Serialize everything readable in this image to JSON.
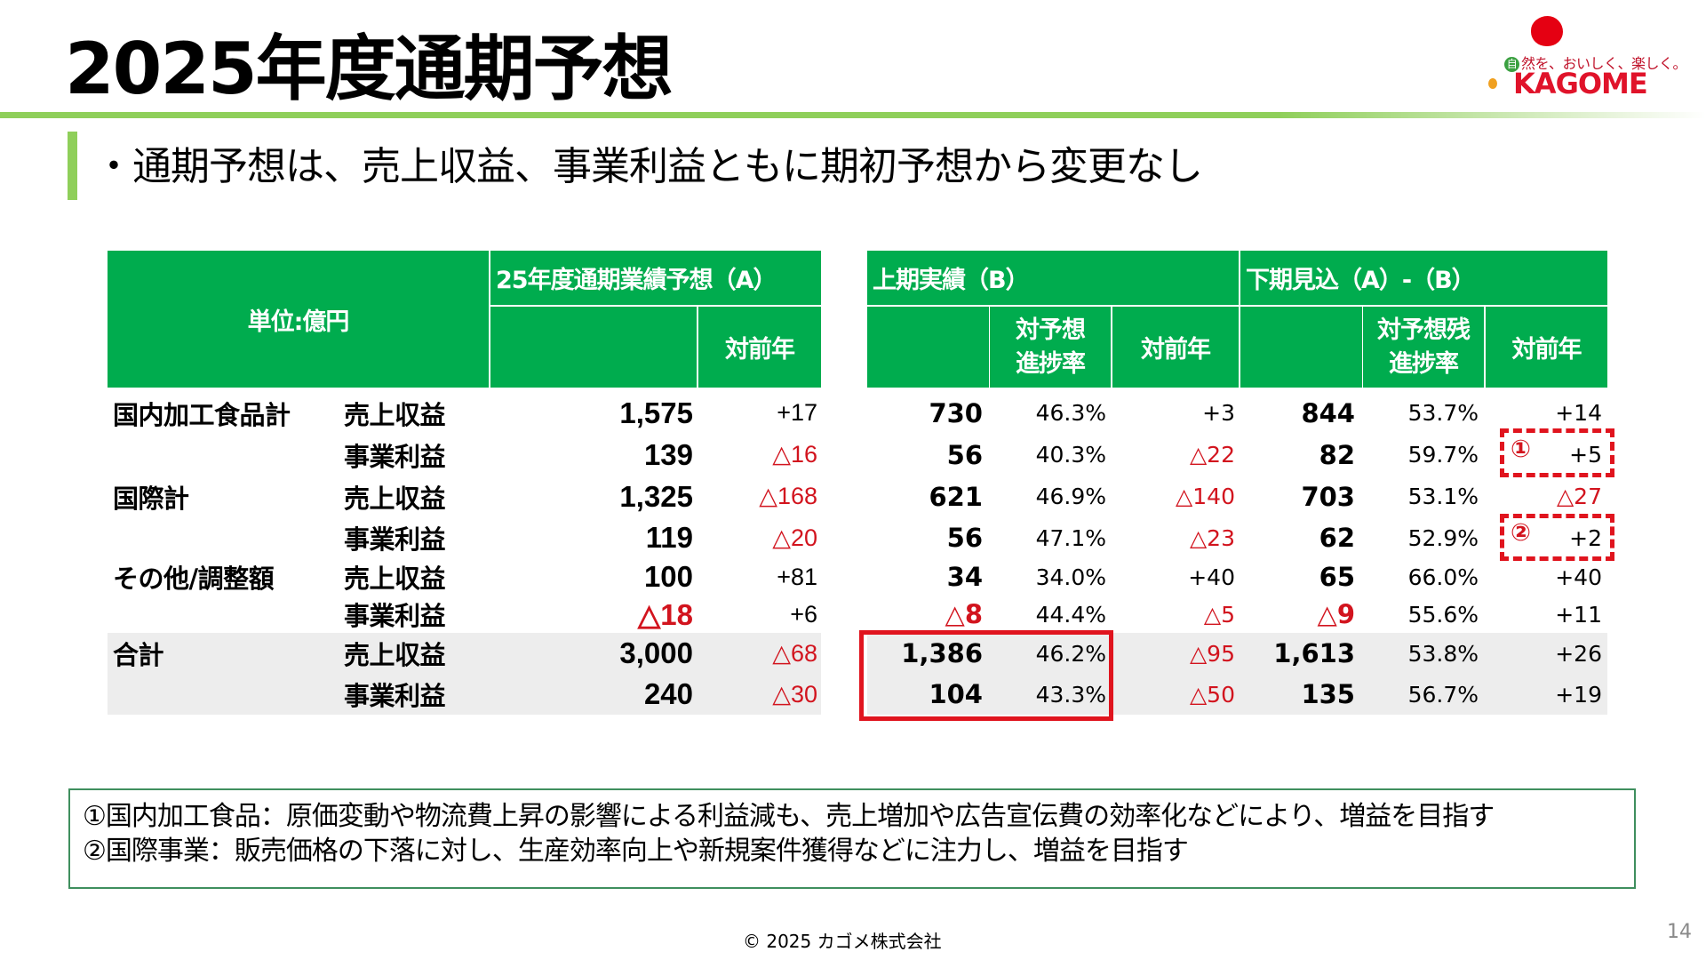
{
  "title": "2025年度通期予想",
  "logo": {
    "tagline_badge": "自",
    "tagline": "然を、おいしく、楽しく。",
    "brand": "KAGOME"
  },
  "subheading": "・通期予想は、売上収益、事業利益ともに期初予想から変更なし",
  "table": {
    "unit_label": "単位:億円",
    "header_a": "25年度通期業績予想（A）",
    "header_a_yoy": "対前年",
    "header_b": "上期実績（B）",
    "header_b_progress_line1": "対予想",
    "header_b_progress_line2": "進捗率",
    "header_b_yoy": "対前年",
    "header_c": "下期見込（A）-（B）",
    "header_c_progress_line1": "対予想残",
    "header_c_progress_line2": "進捗率",
    "header_c_yoy": "対前年",
    "rows": [
      {
        "category": "国内加工食品計",
        "item": "売上収益",
        "a": "1,575",
        "a_yoy": "+17",
        "b": "730",
        "b_pct": "46.3%",
        "b_yoy": "+3",
        "c": "844",
        "c_pct": "53.7%",
        "c_yoy": "+14"
      },
      {
        "category": "",
        "item": "事業利益",
        "a": "139",
        "a_yoy": "△16",
        "b": "56",
        "b_pct": "40.3%",
        "b_yoy": "△22",
        "c": "82",
        "c_pct": "59.7%",
        "c_yoy": "+5"
      },
      {
        "category": "国際計",
        "item": "売上収益",
        "a": "1,325",
        "a_yoy": "△168",
        "b": "621",
        "b_pct": "46.9%",
        "b_yoy": "△140",
        "c": "703",
        "c_pct": "53.1%",
        "c_yoy": "△27"
      },
      {
        "category": "",
        "item": "事業利益",
        "a": "119",
        "a_yoy": "△20",
        "b": "56",
        "b_pct": "47.1%",
        "b_yoy": "△23",
        "c": "62",
        "c_pct": "52.9%",
        "c_yoy": "+2"
      },
      {
        "category": "その他/調整額",
        "item": "売上収益",
        "a": "100",
        "a_yoy": "+81",
        "b": "34",
        "b_pct": "34.0%",
        "b_yoy": "+40",
        "c": "65",
        "c_pct": "66.0%",
        "c_yoy": "+40"
      },
      {
        "category": "",
        "item": "事業利益",
        "a": "△18",
        "a_yoy": "+6",
        "b": "△8",
        "b_pct": "44.4%",
        "b_yoy": "△5",
        "c": "△9",
        "c_pct": "55.6%",
        "c_yoy": "+11"
      },
      {
        "category": "合計",
        "item": "売上収益",
        "a": "3,000",
        "a_yoy": "△68",
        "b": "1,386",
        "b_pct": "46.2%",
        "b_yoy": "△95",
        "c": "1,613",
        "c_pct": "53.8%",
        "c_yoy": "+26"
      },
      {
        "category": "",
        "item": "事業利益",
        "a": "240",
        "a_yoy": "△30",
        "b": "104",
        "b_pct": "43.3%",
        "b_yoy": "△50",
        "c": "135",
        "c_pct": "56.7%",
        "c_yoy": "+19"
      }
    ]
  },
  "callouts": {
    "marker_1": "①",
    "marker_2": "②"
  },
  "colors": {
    "header_green": "#00ac4e",
    "accent_green": "#8fcf5a",
    "negative_red": "#d2141e",
    "total_row_gray": "#ededed"
  },
  "notes": {
    "line1": "①国内加工食品：原価変動や物流費上昇の影響による利益減も、売上増加や広告宣伝費の効率化などにより、増益を目指す",
    "line2": "②国際事業：販売価格の下落に対し、生産効率向上や新規案件獲得などに注力し、増益を目指す"
  },
  "footer": {
    "copyright": "©  2025  カゴメ株式会社",
    "page_number": "14"
  }
}
